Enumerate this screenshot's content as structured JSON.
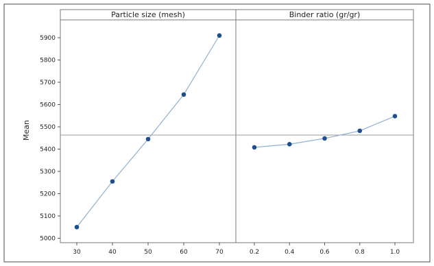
{
  "chart_data": {
    "type": "line",
    "ylabel": "Mean",
    "ylim": [
      4980,
      5980
    ],
    "y_ticks": [
      5000,
      5100,
      5200,
      5300,
      5400,
      5500,
      5600,
      5700,
      5800,
      5900
    ],
    "reference_line": 5463,
    "grid": false,
    "colors": {
      "points": "#1f4e8c",
      "line": "#8fb0d0",
      "reference": "#9a9a9a"
    },
    "panels": [
      {
        "title": "Particle size (mesh)",
        "x": [
          "30",
          "40",
          "50",
          "60",
          "70"
        ],
        "values": [
          5050,
          5255,
          5445,
          5645,
          5910
        ]
      },
      {
        "title": "Binder ratio (gr/gr)",
        "x": [
          "0.2",
          "0.4",
          "0.6",
          "0.8",
          "1.0"
        ],
        "values": [
          5408,
          5422,
          5448,
          5482,
          5548
        ]
      }
    ]
  }
}
